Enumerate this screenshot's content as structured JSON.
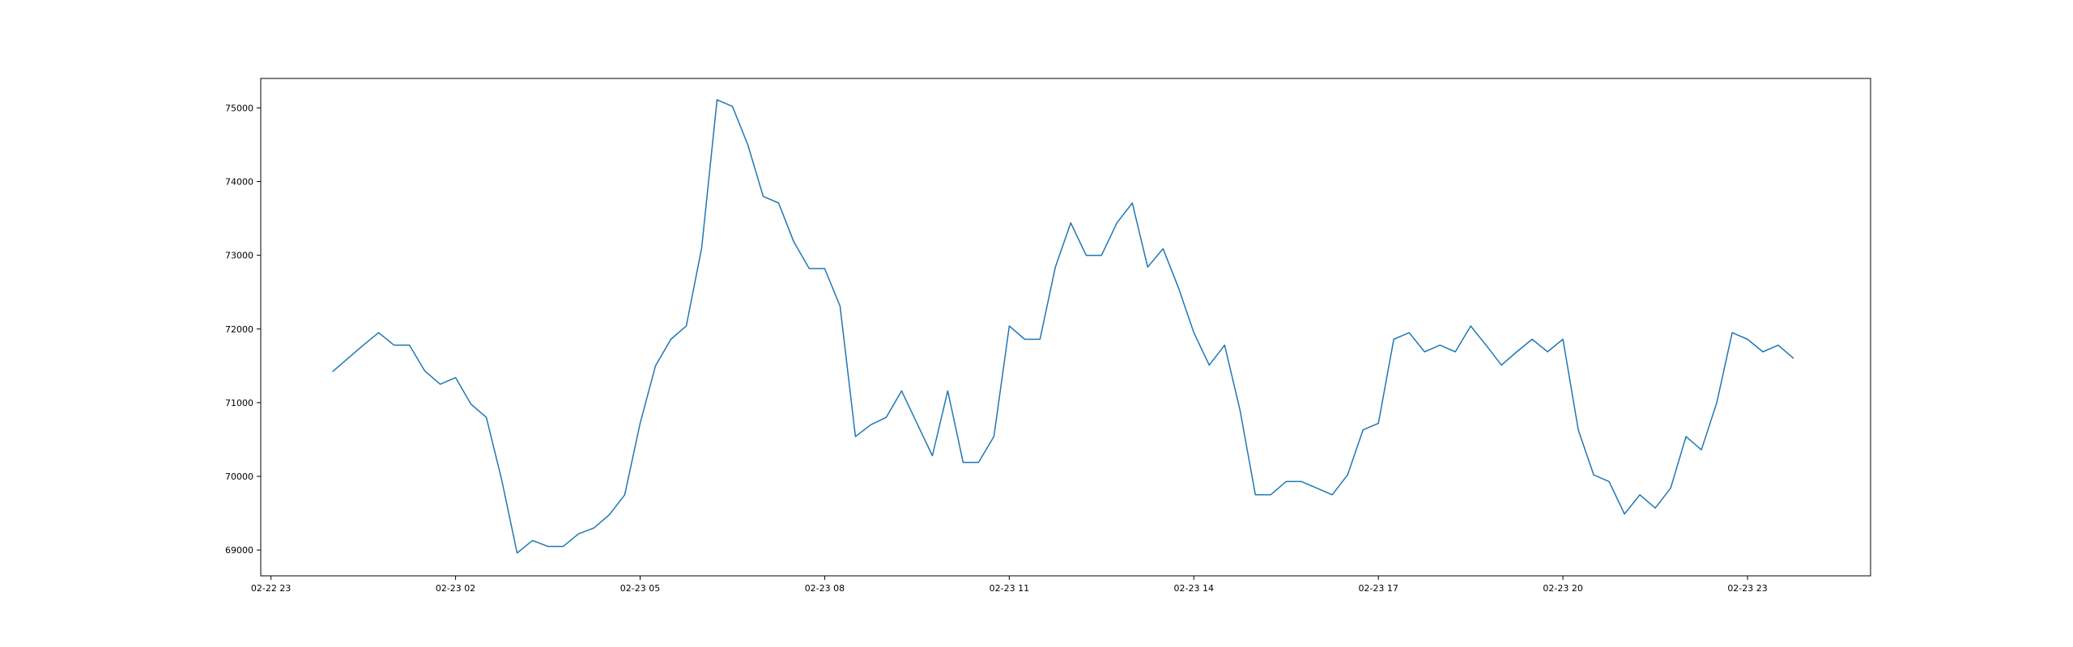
{
  "chart_data": {
    "type": "line",
    "title": "",
    "xlabel": "",
    "ylabel": "",
    "grid": false,
    "line_color": "#1f77b4",
    "x_ticks": [
      {
        "x": "2024-02-22 23:00",
        "label": "02-22 23"
      },
      {
        "x": "2024-02-23 02:00",
        "label": "02-23 02"
      },
      {
        "x": "2024-02-23 05:00",
        "label": "02-23 05"
      },
      {
        "x": "2024-02-23 08:00",
        "label": "02-23 08"
      },
      {
        "x": "2024-02-23 11:00",
        "label": "02-23 11"
      },
      {
        "x": "2024-02-23 14:00",
        "label": "02-23 14"
      },
      {
        "x": "2024-02-23 17:00",
        "label": "02-23 17"
      },
      {
        "x": "2024-02-23 20:00",
        "label": "02-23 20"
      },
      {
        "x": "2024-02-23 23:00",
        "label": "02-23 23"
      }
    ],
    "y_ticks": [
      69000,
      70000,
      71000,
      72000,
      73000,
      74000,
      75000
    ],
    "xlim": [
      "2024-02-22 22:50",
      "2024-02-24 01:00"
    ],
    "ylim": [
      68650,
      75400
    ],
    "series": [
      {
        "x": [
          "2024-02-23 00:00",
          "2024-02-23 00:15",
          "2024-02-23 00:30",
          "2024-02-23 00:45",
          "2024-02-23 01:00",
          "2024-02-23 01:15",
          "2024-02-23 01:30",
          "2024-02-23 01:45",
          "2024-02-23 02:00",
          "2024-02-23 02:15",
          "2024-02-23 02:30",
          "2024-02-23 02:45",
          "2024-02-23 03:00",
          "2024-02-23 03:15",
          "2024-02-23 03:30",
          "2024-02-23 03:45",
          "2024-02-23 04:00",
          "2024-02-23 04:15",
          "2024-02-23 04:30",
          "2024-02-23 04:45",
          "2024-02-23 05:00",
          "2024-02-23 05:15",
          "2024-02-23 05:30",
          "2024-02-23 05:45",
          "2024-02-23 06:00",
          "2024-02-23 06:15",
          "2024-02-23 06:30",
          "2024-02-23 06:45",
          "2024-02-23 07:00",
          "2024-02-23 07:15",
          "2024-02-23 07:30",
          "2024-02-23 07:45",
          "2024-02-23 08:00",
          "2024-02-23 08:15",
          "2024-02-23 08:30",
          "2024-02-23 08:45",
          "2024-02-23 09:00",
          "2024-02-23 09:15",
          "2024-02-23 09:30",
          "2024-02-23 09:45",
          "2024-02-23 10:00",
          "2024-02-23 10:15",
          "2024-02-23 10:30",
          "2024-02-23 10:45",
          "2024-02-23 11:00",
          "2024-02-23 11:15",
          "2024-02-23 11:30",
          "2024-02-23 11:45",
          "2024-02-23 12:00",
          "2024-02-23 12:15",
          "2024-02-23 12:30",
          "2024-02-23 12:45",
          "2024-02-23 13:00",
          "2024-02-23 13:15",
          "2024-02-23 13:30",
          "2024-02-23 13:45",
          "2024-02-23 14:00",
          "2024-02-23 14:15",
          "2024-02-23 14:30",
          "2024-02-23 14:45",
          "2024-02-23 15:00",
          "2024-02-23 15:15",
          "2024-02-23 15:30",
          "2024-02-23 15:45",
          "2024-02-23 16:00",
          "2024-02-23 16:15",
          "2024-02-23 16:30",
          "2024-02-23 16:45",
          "2024-02-23 17:00",
          "2024-02-23 17:15",
          "2024-02-23 17:30",
          "2024-02-23 17:45",
          "2024-02-23 18:00",
          "2024-02-23 18:15",
          "2024-02-23 18:30",
          "2024-02-23 18:45",
          "2024-02-23 19:00",
          "2024-02-23 19:15",
          "2024-02-23 19:30",
          "2024-02-23 19:45",
          "2024-02-23 20:00",
          "2024-02-23 20:15",
          "2024-02-23 20:30",
          "2024-02-23 20:45",
          "2024-02-23 21:00",
          "2024-02-23 21:15",
          "2024-02-23 21:30",
          "2024-02-23 21:45",
          "2024-02-23 22:00",
          "2024-02-23 22:15",
          "2024-02-23 22:30",
          "2024-02-23 22:45",
          "2024-02-23 23:00",
          "2024-02-23 23:15",
          "2024-02-23 23:30",
          "2024-02-23 23:45"
        ],
        "values": [
          71420,
          71600,
          71780,
          71950,
          71780,
          71780,
          71430,
          71250,
          71340,
          70980,
          70800,
          69950,
          68960,
          69130,
          69050,
          69050,
          69220,
          69300,
          69480,
          69750,
          70720,
          71500,
          71860,
          72040,
          73100,
          75110,
          75020,
          74500,
          73800,
          73710,
          73180,
          72820,
          72820,
          72310,
          70540,
          70700,
          70800,
          71160,
          70720,
          70280,
          71160,
          70190,
          70190,
          70540,
          72040,
          71860,
          71860,
          72840,
          73440,
          73000,
          73000,
          73440,
          73710,
          72840,
          73090,
          72560,
          71950,
          71510,
          71780,
          70900,
          69750,
          69750,
          69930,
          69930,
          69840,
          69750,
          70020,
          70630,
          70720,
          71860,
          71950,
          71690,
          71780,
          71690,
          72040,
          71780,
          71510,
          71690,
          71860,
          71690,
          71860,
          70630,
          70020,
          69930,
          69490,
          69750,
          69570,
          69840,
          70540,
          70360,
          71000,
          71950,
          71860,
          71690,
          71780,
          71600
        ]
      }
    ]
  }
}
